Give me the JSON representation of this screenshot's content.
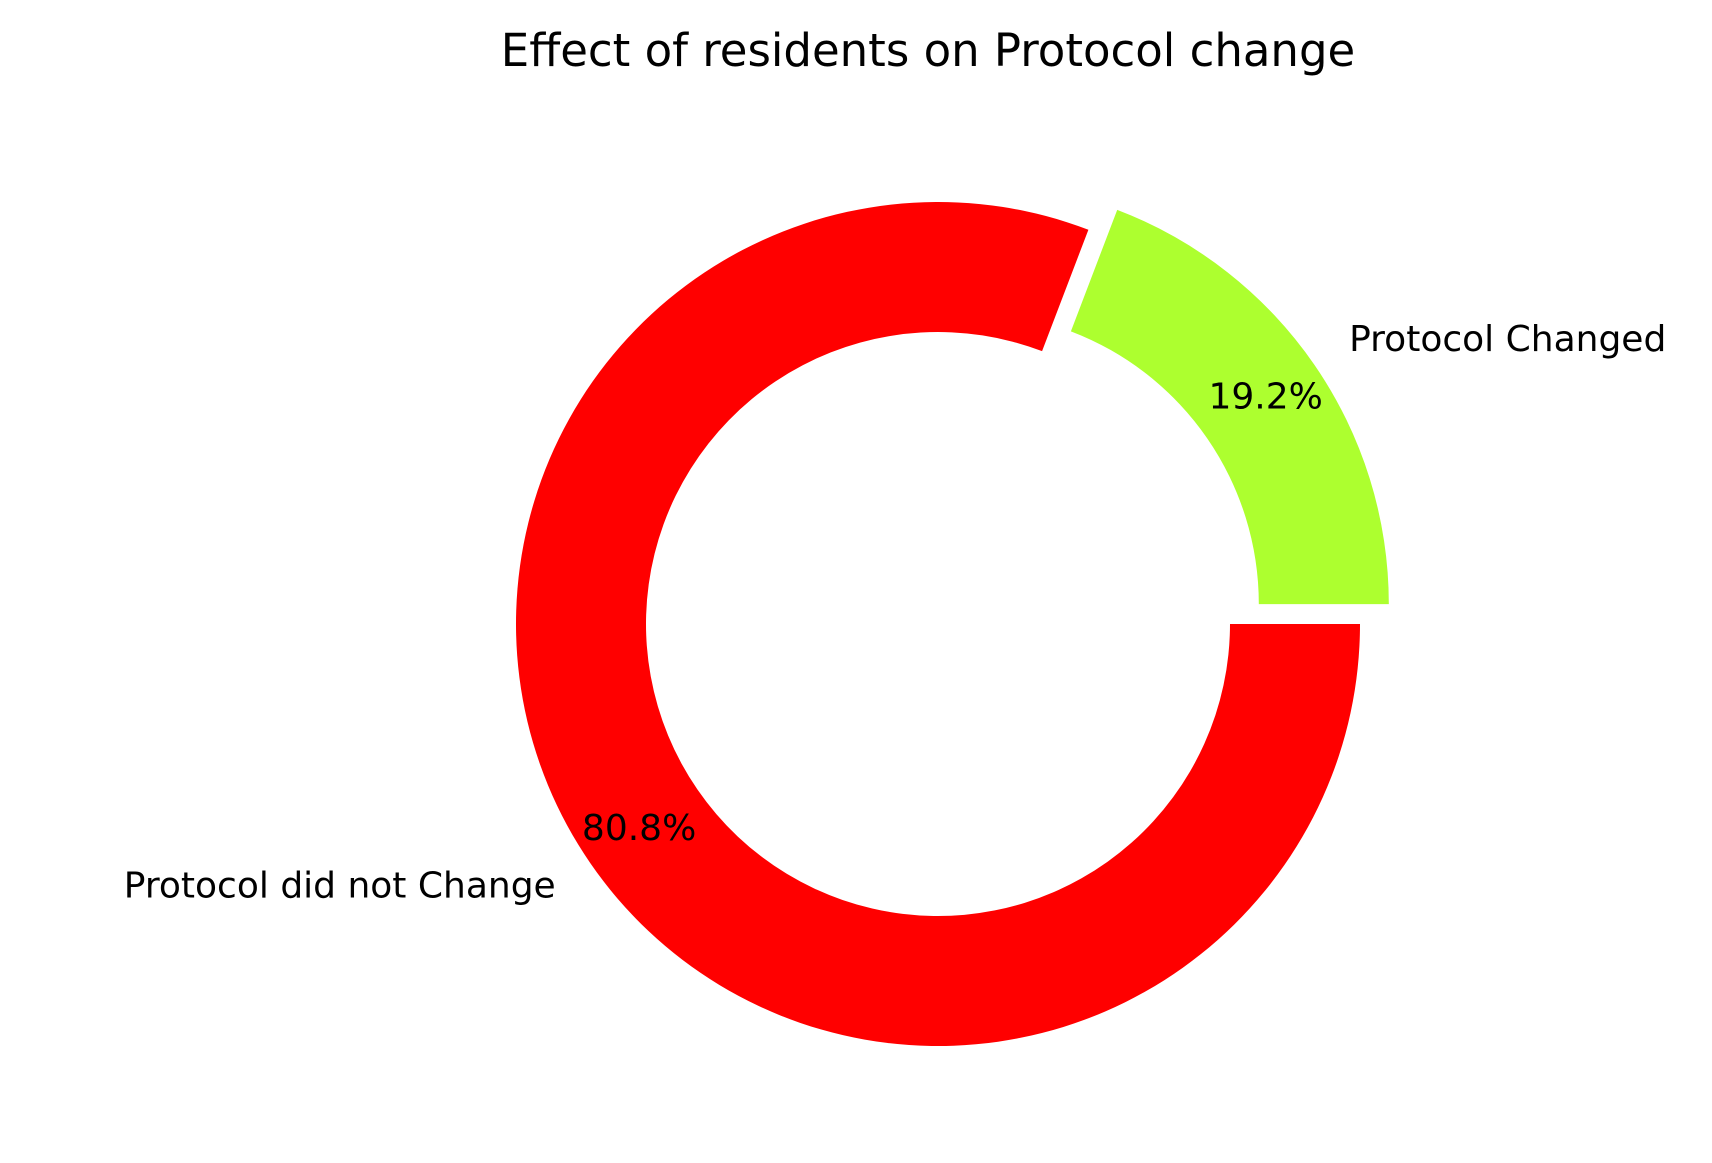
{
  "chart_data": {
    "type": "pie",
    "style": "donut",
    "title": "Effect of residents on Protocol change",
    "slices": [
      {
        "label": "Protocol Changed",
        "value": 19.2,
        "pct_label": "19.2%",
        "color": "#adff2f",
        "exploded": true
      },
      {
        "label": "Protocol did not Change",
        "value": 80.8,
        "pct_label": "80.8%",
        "color": "#ff0000",
        "exploded": false
      }
    ],
    "start_angle_deg": 0,
    "direction": "counterclockwise",
    "legend": "none"
  }
}
